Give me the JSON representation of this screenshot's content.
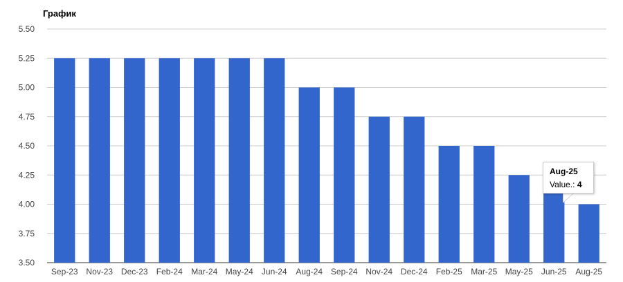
{
  "chart_data": {
    "type": "bar",
    "title": "График",
    "xlabel": "",
    "ylabel": "",
    "ylim": [
      3.5,
      5.5
    ],
    "yticks": [
      "5.50",
      "5.25",
      "5.00",
      "4.75",
      "4.50",
      "4.25",
      "4.00",
      "3.75",
      "3.50"
    ],
    "grid": true,
    "bar_color": "#3366cc",
    "categories": [
      "Sep-23",
      "Nov-23",
      "Dec-23",
      "Feb-24",
      "Mar-24",
      "May-24",
      "Jun-24",
      "Aug-24",
      "Sep-24",
      "Nov-24",
      "Dec-24",
      "Feb-25",
      "Mar-25",
      "May-25",
      "Jun-25",
      "Aug-25"
    ],
    "values": [
      5.25,
      5.25,
      5.25,
      5.25,
      5.25,
      5.25,
      5.25,
      5.0,
      5.0,
      4.75,
      4.75,
      4.5,
      4.5,
      4.25,
      4.25,
      4.0
    ]
  },
  "tooltip": {
    "title": "Aug-25",
    "label": "Value.:",
    "value": "4"
  }
}
